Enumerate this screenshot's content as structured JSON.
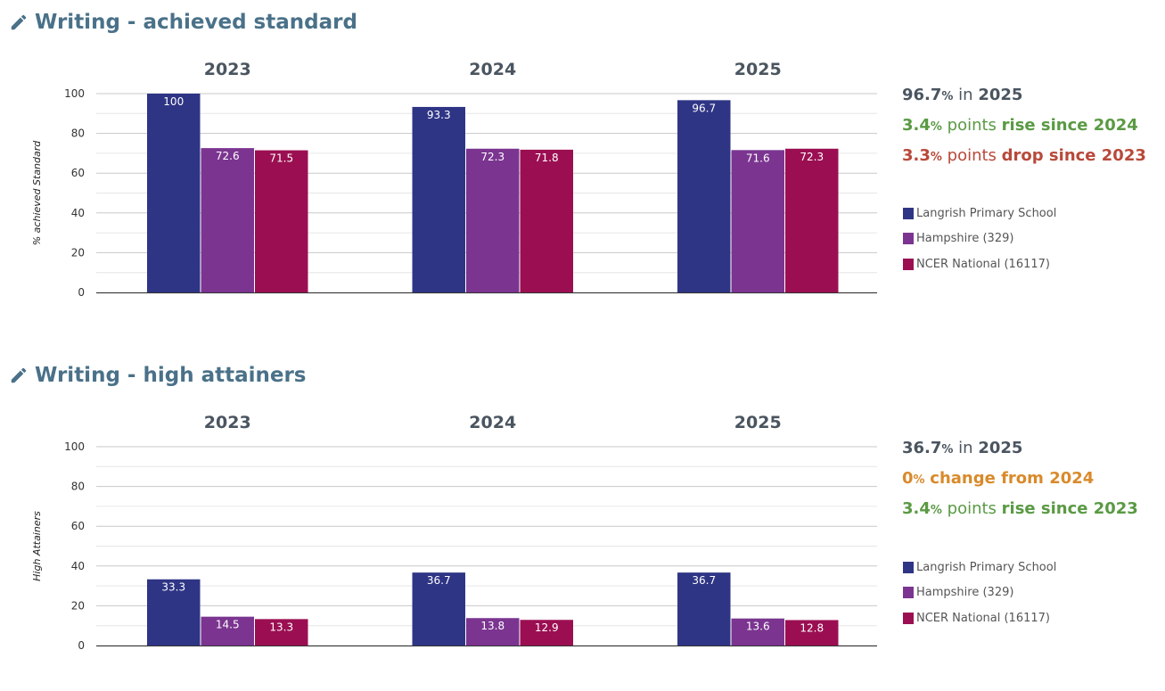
{
  "colors": {
    "school": "#2f3585",
    "county": "#7b3590",
    "national": "#9b0f52",
    "title": "#4a7189",
    "rise": "#5a9a44",
    "drop": "#b8493a",
    "flat": "#d98a2b"
  },
  "icons": {
    "title_icon": "pencil-icon"
  },
  "sections": [
    {
      "title": "Writing - achieved standard",
      "summary": {
        "value": "96.7",
        "value_unit": "%",
        "in_word": " in ",
        "year": "2025",
        "line2": {
          "value": "3.4",
          "unit": "%",
          "mid": " points ",
          "tail": "rise since 2024"
        },
        "line3": {
          "value": "3.3",
          "unit": "%",
          "mid": " points ",
          "tail": "drop since 2023"
        }
      }
    },
    {
      "title": "Writing - high attainers",
      "summary": {
        "value": "36.7",
        "value_unit": "%",
        "in_word": " in ",
        "year": "2025",
        "line2": {
          "value": "0",
          "unit": "%",
          "mid": " ",
          "tail": "change from 2024"
        },
        "line3": {
          "value": "3.4",
          "unit": "%",
          "mid": " points ",
          "tail": "rise since 2023"
        }
      }
    }
  ],
  "legend": [
    {
      "name": "Langrish Primary School",
      "color": "#2f3585"
    },
    {
      "name": "Hampshire (329)",
      "color": "#7b3590"
    },
    {
      "name": "NCER National (16117)",
      "color": "#9b0f52"
    }
  ],
  "chart_data": [
    {
      "type": "bar",
      "title": "Writing - achieved standard",
      "ylabel": "% achieved Standard",
      "xlabel": "",
      "categories": [
        "2023",
        "2024",
        "2025"
      ],
      "ylim": [
        0,
        100
      ],
      "yticks": [
        0,
        20,
        40,
        60,
        80,
        100
      ],
      "grid": true,
      "legend_position": "right",
      "series": [
        {
          "name": "Langrish Primary School",
          "values": [
            100,
            93.3,
            96.7
          ]
        },
        {
          "name": "Hampshire (329)",
          "values": [
            72.6,
            72.3,
            71.6
          ]
        },
        {
          "name": "NCER National (16117)",
          "values": [
            71.5,
            71.8,
            72.3
          ]
        }
      ]
    },
    {
      "type": "bar",
      "title": "Writing - high attainers",
      "ylabel": "High Attainers",
      "xlabel": "",
      "categories": [
        "2023",
        "2024",
        "2025"
      ],
      "ylim": [
        0,
        100
      ],
      "yticks": [
        0,
        20,
        40,
        60,
        80,
        100
      ],
      "grid": true,
      "legend_position": "right",
      "series": [
        {
          "name": "Langrish Primary School",
          "values": [
            33.3,
            36.7,
            36.7
          ]
        },
        {
          "name": "Hampshire (329)",
          "values": [
            14.5,
            13.8,
            13.6
          ]
        },
        {
          "name": "NCER National (16117)",
          "values": [
            13.3,
            12.9,
            12.8
          ]
        }
      ]
    }
  ]
}
